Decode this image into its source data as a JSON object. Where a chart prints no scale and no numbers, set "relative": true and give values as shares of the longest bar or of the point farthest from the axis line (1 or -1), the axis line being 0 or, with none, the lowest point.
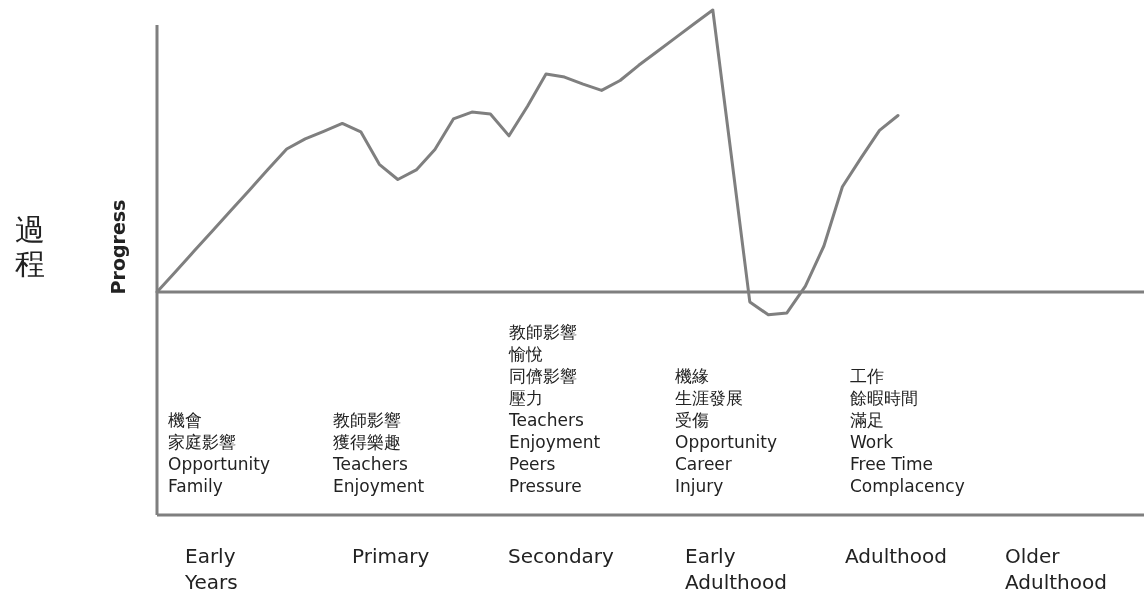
{
  "chart_data": {
    "type": "line",
    "relative": true,
    "ylabel": "Progress",
    "categories": [
      null,
      null,
      null,
      null,
      null,
      null,
      null,
      null,
      null,
      null,
      null,
      null,
      null,
      null,
      null,
      null,
      null,
      null,
      null,
      null,
      null,
      null,
      null,
      null,
      null,
      null,
      null,
      null,
      null,
      null,
      null,
      null,
      null,
      null,
      null,
      null,
      null,
      null,
      null,
      null,
      null
    ],
    "series": [
      {
        "color": "#7f7f7f",
        "values": [
          0,
          0.072,
          0.145,
          0.217,
          0.29,
          0.362,
          0.435,
          0.507,
          0.543,
          0.57,
          0.598,
          0.568,
          0.453,
          0.399,
          0.433,
          0.505,
          0.614,
          0.638,
          0.631,
          0.554,
          0.659,
          0.773,
          0.762,
          0.737,
          0.715,
          0.75,
          0.804,
          0.853,
          0.902,
          0.951,
          1,
          0.484,
          -0.035,
          -0.081,
          -0.074,
          0.021,
          0.163,
          0.373,
          0.475,
          0.573,
          0.626
        ]
      }
    ],
    "annotations": [
      "機會",
      "家庭影響",
      "Opportunity\nFamily",
      "教師影響",
      "獲得樂趣",
      "Teachers\nEnjoyment",
      "教師影響",
      "愉悅",
      "同儕影響",
      "壓力",
      "Teachers\nEnjoyment\nPeers\nPressure",
      "機緣",
      "生涯發展",
      "受傷",
      "Opportunity\nCareer\nInjury",
      "工作",
      "餘暇時間",
      "滿足",
      "Work\nFree Time\nComplacency",
      "Early\nYears",
      "Primary",
      "Secondary",
      "Early\nAdulthood",
      "Adulthood",
      "Older\nAdulthood",
      "過程"
    ],
    "line_style": "solid",
    "marker": "none",
    "grid": false,
    "legend": false
  }
}
